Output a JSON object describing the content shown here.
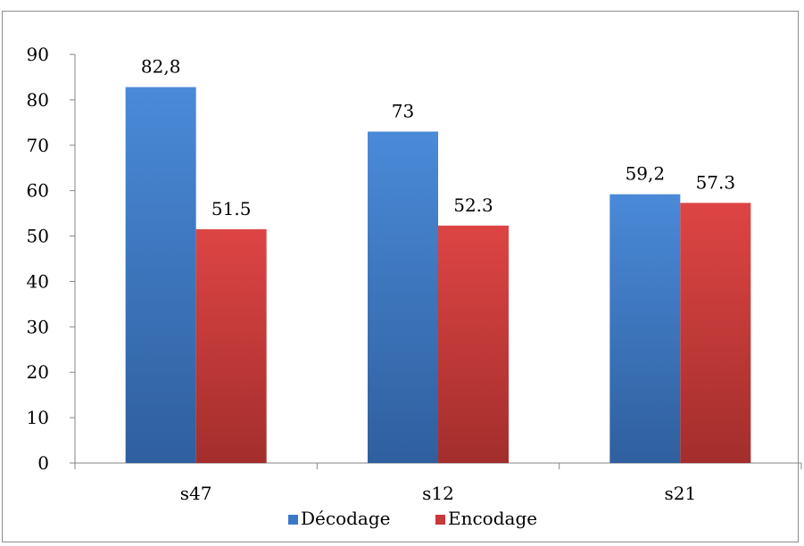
{
  "chart_data": {
    "type": "bar",
    "categories": [
      "s47",
      "s12",
      "s21"
    ],
    "series": [
      {
        "name": "Décodage",
        "values": [
          82.8,
          73,
          59.2
        ],
        "labels": [
          "82,8",
          "73",
          "59,2"
        ],
        "color": "#3c78c8"
      },
      {
        "name": "Encodage",
        "values": [
          51.5,
          52.3,
          57.3
        ],
        "labels": [
          "51.5",
          "52.3",
          "57.3"
        ],
        "color": "#c8373a"
      }
    ],
    "title": "",
    "xlabel": "",
    "ylabel": "",
    "ylim": [
      0,
      90
    ],
    "yticks": [
      "0",
      "10",
      "20",
      "30",
      "40",
      "50",
      "60",
      "70",
      "80",
      "90"
    ],
    "grid": false,
    "legend": "bottom"
  }
}
